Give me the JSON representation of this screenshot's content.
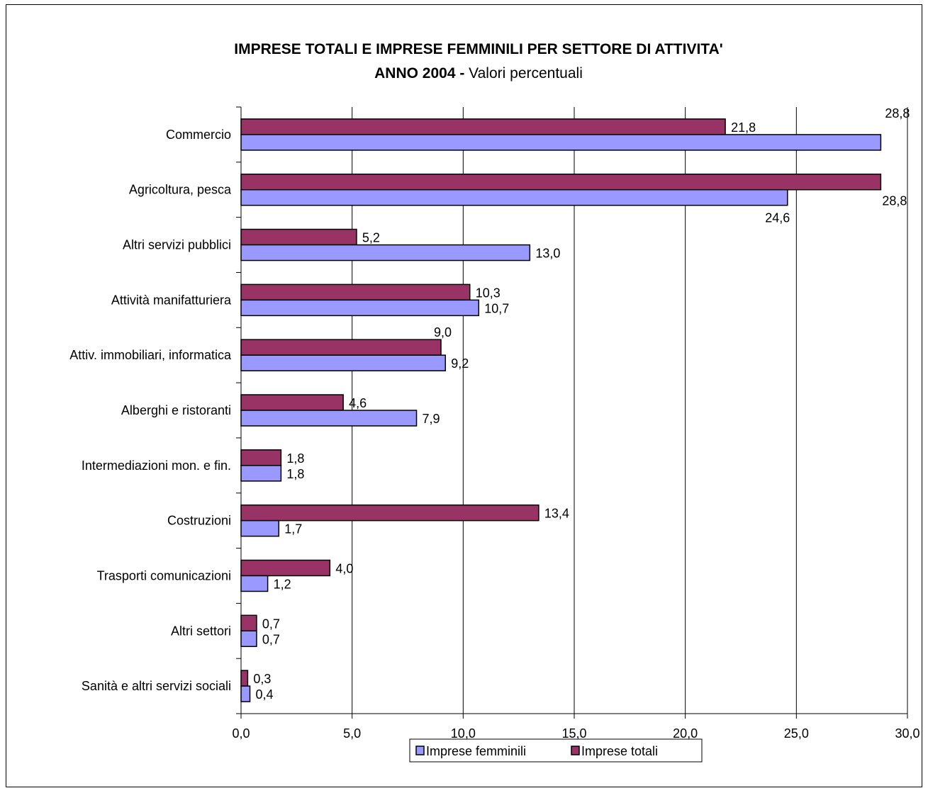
{
  "chart_data": {
    "type": "bar",
    "orientation": "horizontal",
    "title": "IMPRESE TOTALI E IMPRESE FEMMINILI PER SETTORE DI ATTIVITA'",
    "subtitle_bold": "ANNO 2004 -",
    "subtitle": "Valori percentuali",
    "categories": [
      "Commercio",
      "Agricoltura, pesca",
      "Altri servizi pubblici",
      "Attività manifatturiera",
      "Attiv. immobiliari, informatica",
      "Alberghi e ristoranti",
      "Intermediazioni mon. e fin.",
      "Costruzioni",
      "Trasporti comunicazioni",
      "Altri settori",
      "Sanità e altri servizi sociali"
    ],
    "series": [
      {
        "name": "Imprese femminili",
        "color": "#9999FF",
        "values": [
          28.8,
          24.6,
          13.0,
          10.7,
          9.2,
          7.9,
          1.8,
          1.7,
          1.2,
          0.7,
          0.4
        ],
        "labels": [
          "28,8",
          "24,6",
          "13,0",
          "10,7",
          "9,2",
          "7,9",
          "1,8",
          "1,7",
          "1,2",
          "0,7",
          "0,4"
        ]
      },
      {
        "name": "Imprese totali",
        "color": "#993366",
        "values": [
          21.8,
          28.8,
          5.2,
          10.3,
          9.0,
          4.6,
          1.8,
          13.4,
          4.0,
          0.7,
          0.3
        ],
        "labels": [
          "21,8",
          "28,8",
          "5,2",
          "10,3",
          "9,0",
          "4,6",
          "1,8",
          "13,4",
          "4,0",
          "0,7",
          "0,3"
        ]
      }
    ],
    "xlim": [
      0,
      30
    ],
    "xticks": [
      0,
      5,
      10,
      15,
      20,
      25,
      30
    ],
    "xtick_labels": [
      "0,0",
      "5,0",
      "10,0",
      "15,0",
      "20,0",
      "25,0",
      "30,0"
    ],
    "grid": "vertical",
    "legend": "bottom"
  }
}
